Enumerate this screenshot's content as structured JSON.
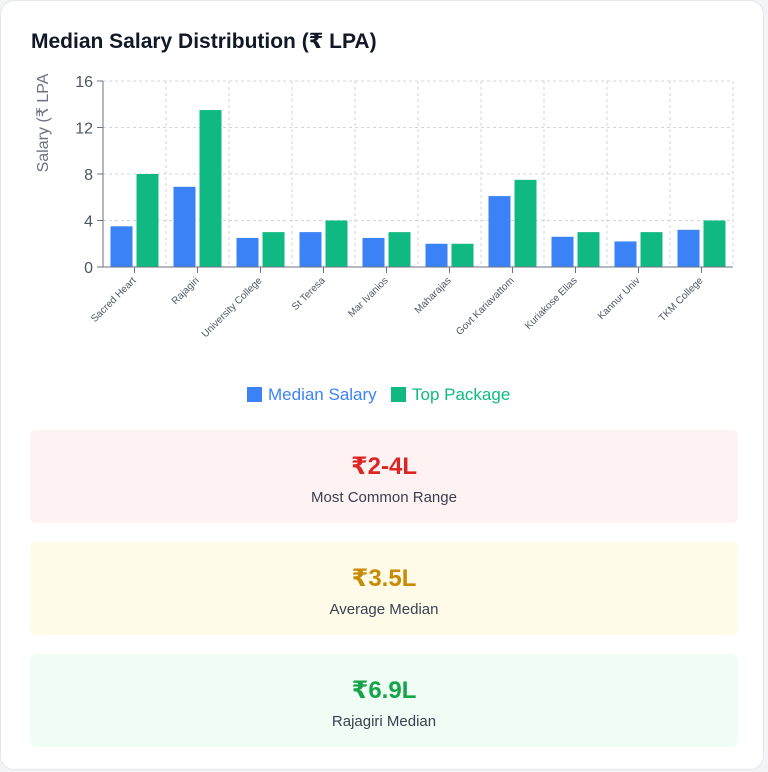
{
  "card": {
    "title": "Median Salary Distribution (₹ LPA)"
  },
  "chart_data": {
    "type": "bar",
    "categories": [
      "Sacred Heart",
      "Rajagiri",
      "University College",
      "St Teresa",
      "Mar Ivanios",
      "Maharajas",
      "Govt Kariavattom",
      "Kuriakose Elias",
      "Kannur Univ",
      "TKM College"
    ],
    "series": [
      {
        "name": "Median Salary",
        "color": "#3b82f6",
        "values": [
          3.5,
          6.9,
          2.5,
          3.0,
          2.5,
          2.0,
          6.1,
          2.6,
          2.2,
          3.2
        ]
      },
      {
        "name": "Top Package",
        "color": "#10b981",
        "values": [
          8.0,
          13.5,
          3.0,
          4.0,
          3.0,
          2.0,
          7.5,
          3.0,
          3.0,
          4.0
        ]
      }
    ],
    "ylabel": "Salary (₹ LPA",
    "xlabel": "",
    "ylim": [
      0,
      16
    ],
    "yticks": [
      0,
      4,
      8,
      12,
      16
    ],
    "grid": true,
    "legend": "bottom"
  },
  "stats": [
    {
      "value": "₹2-4L",
      "label": "Most Common Range"
    },
    {
      "value": "₹3.5L",
      "label": "Average Median"
    },
    {
      "value": "₹6.9L",
      "label": "Rajagiri Median"
    }
  ]
}
